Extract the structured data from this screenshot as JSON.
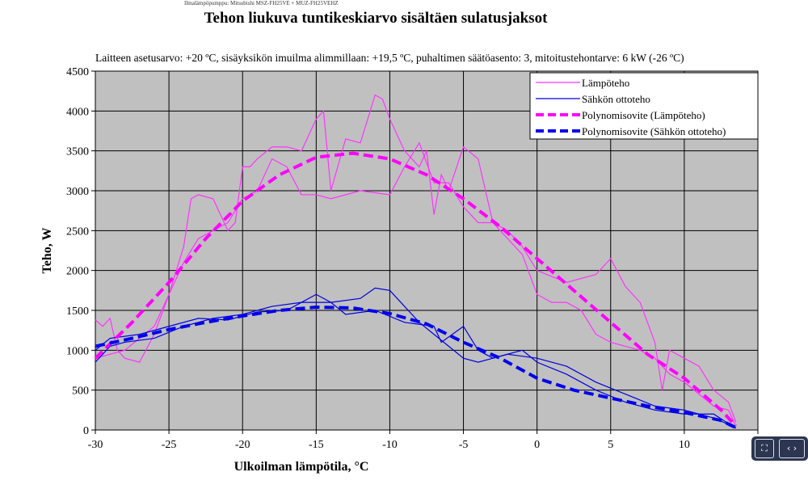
{
  "header_text": "Ilmalämpöpumppu: Mitsubishi MSZ-FH25VE + MUZ-FH25VEHZ",
  "nav": {
    "fit_icon": "fit-screen-icon",
    "arrows_icon": "prev-next-icon",
    "arrows_label": "‹ ›",
    "fit_label": "⛶"
  },
  "chart_data": {
    "type": "line",
    "title": "Tehon liukuva tuntikeskiarvo sisältäen sulatusjaksot",
    "subtitle": "Laitteen asetusarvo: +20 ºC, sisäyksikön imuilma alimmillaan: +19,5 ºC, puhaltimen säätöasento: 3, mitoitustehontarve: 6 kW (-26 ºC)",
    "xlabel": "Ulkoilman lämpötila, °C",
    "ylabel": "Teho, W",
    "xlim": [
      -30,
      15
    ],
    "ylim": [
      0,
      4500
    ],
    "xticks": [
      -30,
      -25,
      -20,
      -15,
      -10,
      -5,
      0,
      5,
      10
    ],
    "yticks": [
      0,
      500,
      1000,
      1500,
      2000,
      2500,
      3000,
      3500,
      4000,
      4500
    ],
    "grid": true,
    "legend": "top-right",
    "background": "#c0c0c0",
    "series": [
      {
        "name": "Lämpöteho",
        "color": "#ff33ff",
        "dash": false,
        "segments": [
          [
            [
              -30,
              1380
            ],
            [
              -29.5,
              1300
            ],
            [
              -29,
              1400
            ],
            [
              -28.5,
              1000
            ],
            [
              -28,
              900
            ],
            [
              -27,
              850
            ],
            [
              -26,
              1200
            ],
            [
              -25,
              1700
            ],
            [
              -24,
              2300
            ],
            [
              -23.5,
              2900
            ],
            [
              -23,
              2950
            ],
            [
              -22,
              2900
            ],
            [
              -21,
              2500
            ],
            [
              -20.5,
              2600
            ],
            [
              -20,
              3300
            ],
            [
              -19.5,
              3300
            ],
            [
              -19,
              3400
            ],
            [
              -18,
              3550
            ],
            [
              -17,
              3550
            ],
            [
              -16,
              3500
            ],
            [
              -15,
              3900
            ],
            [
              -14.5,
              4000
            ],
            [
              -14,
              3000
            ],
            [
              -13,
              3650
            ],
            [
              -12,
              3600
            ],
            [
              -11,
              4200
            ],
            [
              -10.5,
              4150
            ],
            [
              -10,
              3900
            ],
            [
              -9,
              3500
            ],
            [
              -8,
              3300
            ],
            [
              -7.5,
              3500
            ],
            [
              -7,
              2700
            ],
            [
              -6.5,
              3200
            ],
            [
              -6,
              3000
            ],
            [
              -5,
              3550
            ],
            [
              -4,
              3400
            ],
            [
              -3,
              2600
            ],
            [
              -2,
              2400
            ],
            [
              -1,
              2200
            ],
            [
              0,
              1700
            ],
            [
              1,
              1600
            ],
            [
              2,
              1600
            ],
            [
              3,
              1500
            ],
            [
              4,
              1200
            ],
            [
              5,
              1100
            ],
            [
              6,
              1050
            ],
            [
              7,
              1000
            ],
            [
              8,
              900
            ],
            [
              9,
              700
            ],
            [
              10,
              600
            ],
            [
              11,
              450
            ],
            [
              12,
              300
            ],
            [
              13,
              250
            ],
            [
              13.5,
              50
            ]
          ],
          [
            [
              -30,
              900
            ],
            [
              -28,
              1000
            ],
            [
              -26,
              1300
            ],
            [
              -25,
              1700
            ],
            [
              -24,
              2100
            ],
            [
              -23,
              2400
            ],
            [
              -22,
              2500
            ],
            [
              -21,
              2600
            ],
            [
              -20,
              2900
            ],
            [
              -19,
              3000
            ],
            [
              -18,
              3400
            ],
            [
              -17,
              3300
            ],
            [
              -16,
              2950
            ],
            [
              -15,
              2950
            ],
            [
              -14,
              2900
            ],
            [
              -12,
              3000
            ],
            [
              -10,
              2950
            ],
            [
              -9,
              3300
            ],
            [
              -8,
              3600
            ],
            [
              -7,
              3100
            ],
            [
              -6,
              3100
            ],
            [
              -5,
              2800
            ],
            [
              -4,
              2600
            ],
            [
              -3,
              2600
            ],
            [
              -2,
              2500
            ],
            [
              -1,
              2300
            ],
            [
              0,
              2000
            ],
            [
              2,
              1850
            ],
            [
              4,
              1950
            ],
            [
              5,
              2150
            ],
            [
              6,
              1800
            ],
            [
              7,
              1600
            ],
            [
              8,
              1100
            ],
            [
              8.5,
              500
            ],
            [
              9,
              1000
            ],
            [
              10,
              900
            ],
            [
              11,
              800
            ],
            [
              12,
              500
            ],
            [
              13,
              350
            ],
            [
              13.5,
              100
            ]
          ]
        ]
      },
      {
        "name": "Sähkön ottoteho",
        "color": "#0000dd",
        "dash": false,
        "segments": [
          [
            [
              -30,
              850
            ],
            [
              -29,
              1050
            ],
            [
              -28,
              1100
            ],
            [
              -26,
              1150
            ],
            [
              -24,
              1300
            ],
            [
              -22,
              1400
            ],
            [
              -20,
              1450
            ],
            [
              -18,
              1550
            ],
            [
              -16,
              1600
            ],
            [
              -14,
              1600
            ],
            [
              -12,
              1650
            ],
            [
              -11,
              1780
            ],
            [
              -10,
              1750
            ],
            [
              -9,
              1550
            ],
            [
              -8,
              1350
            ],
            [
              -7,
              1200
            ],
            [
              -6,
              1050
            ],
            [
              -5,
              900
            ],
            [
              -4,
              850
            ],
            [
              -3,
              900
            ],
            [
              -2,
              950
            ],
            [
              0,
              900
            ],
            [
              2,
              800
            ],
            [
              4,
              600
            ],
            [
              6,
              450
            ],
            [
              8,
              300
            ],
            [
              10,
              250
            ],
            [
              12,
              150
            ],
            [
              13.5,
              30
            ]
          ],
          [
            [
              -30,
              1000
            ],
            [
              -29,
              1150
            ],
            [
              -27,
              1200
            ],
            [
              -25,
              1300
            ],
            [
              -23,
              1400
            ],
            [
              -21,
              1380
            ],
            [
              -19,
              1480
            ],
            [
              -17,
              1500
            ],
            [
              -15,
              1700
            ],
            [
              -14,
              1600
            ],
            [
              -13,
              1450
            ],
            [
              -11,
              1500
            ],
            [
              -9,
              1350
            ],
            [
              -7,
              1300
            ],
            [
              -6.5,
              1100
            ],
            [
              -5,
              1300
            ],
            [
              -4,
              1000
            ],
            [
              -3,
              900
            ],
            [
              -1,
              1000
            ],
            [
              0,
              850
            ],
            [
              2,
              700
            ],
            [
              4,
              500
            ],
            [
              6,
              350
            ],
            [
              8,
              250
            ],
            [
              10,
              200
            ],
            [
              12,
              200
            ],
            [
              13.5,
              20
            ]
          ]
        ]
      },
      {
        "name": "Polynomisovite (Lämpöteho)",
        "color": "#ff00ff",
        "dash": true,
        "segments": [
          [
            [
              -30,
              900
            ],
            [
              -27.5,
              1350
            ],
            [
              -25,
              1850
            ],
            [
              -22.5,
              2400
            ],
            [
              -20,
              2870
            ],
            [
              -17.5,
              3200
            ],
            [
              -15,
              3420
            ],
            [
              -12.5,
              3470
            ],
            [
              -10,
              3400
            ],
            [
              -7.5,
              3200
            ],
            [
              -5,
              2900
            ],
            [
              -2.5,
              2550
            ],
            [
              0,
              2150
            ],
            [
              2.5,
              1750
            ],
            [
              5,
              1350
            ],
            [
              7.5,
              950
            ],
            [
              10,
              650
            ],
            [
              12.5,
              250
            ],
            [
              13.5,
              50
            ]
          ]
        ]
      },
      {
        "name": "Polynomisovite (Sähkön ottoteho)",
        "color": "#0000ee",
        "dash": true,
        "segments": [
          [
            [
              -30,
              1050
            ],
            [
              -27.5,
              1150
            ],
            [
              -25,
              1260
            ],
            [
              -22.5,
              1350
            ],
            [
              -20,
              1430
            ],
            [
              -17.5,
              1500
            ],
            [
              -15,
              1540
            ],
            [
              -12.5,
              1530
            ],
            [
              -10,
              1460
            ],
            [
              -7.5,
              1330
            ],
            [
              -5,
              1100
            ],
            [
              -2.5,
              900
            ],
            [
              0,
              650
            ],
            [
              2.5,
              500
            ],
            [
              5,
              400
            ],
            [
              7.5,
              300
            ],
            [
              10,
              220
            ],
            [
              12.5,
              120
            ],
            [
              13.5,
              30
            ]
          ]
        ]
      }
    ]
  }
}
